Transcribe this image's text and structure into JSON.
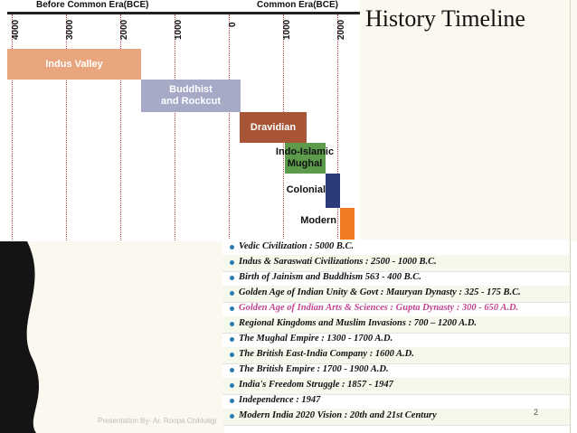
{
  "slide": {
    "title": "History Timeline",
    "footer": "Presentation By- Ar. Roopa Chikkalgi",
    "page_number": "2"
  },
  "timeline": {
    "bce_label": "Before Common Era(BCE)",
    "ce_label": "Common Era(BCE)",
    "ticks": [
      "4000",
      "3000",
      "2000",
      "1000",
      "0",
      "1000",
      "2000"
    ],
    "periods": [
      {
        "label": "Indus Valley",
        "color": "#e9a57e"
      },
      {
        "label": "Buddhist and Rockcut",
        "color": "#a6aac7"
      },
      {
        "label": "Dravidian",
        "color": "#a85437"
      },
      {
        "label": "Indo-Islamic Mughal",
        "color": "#5c9b4c"
      },
      {
        "label": "Colonial",
        "color": "#2d3a78"
      },
      {
        "label": "Modern",
        "color": "#f07a22"
      }
    ]
  },
  "events": [
    "Vedic Civilization : 5000 B.C.",
    "Indus & Saraswati Civilizations : 2500 - 1000 B.C.",
    "Birth of Jainism and Buddhism 563 - 400 B.C.",
    "Golden Age of Indian Unity & Govt : Mauryan Dynasty : 325 - 175 B.C.",
    "Golden Age of Indian Arts & Sciences : Gupta Dynasty : 300 - 650 A.D.",
    "Regional Kingdoms and Muslim Invasions : 700 – 1200 A.D.",
    "The Mughal Empire : 1300 - 1700 A.D.",
    "The British East-India Company : 1600 A.D.",
    "The British Empire : 1700 - 1900 A.D.",
    "India's Freedom Struggle : 1857 - 1947",
    "Independence : 1947",
    "Modern India 2020 Vision : 20th and 21st Century"
  ],
  "highlight_event": "Golden Age of Indian Arts & Sciences : Gupta Dynasty : 300 - 650 A.D.",
  "highlight_color": "#c2448f"
}
